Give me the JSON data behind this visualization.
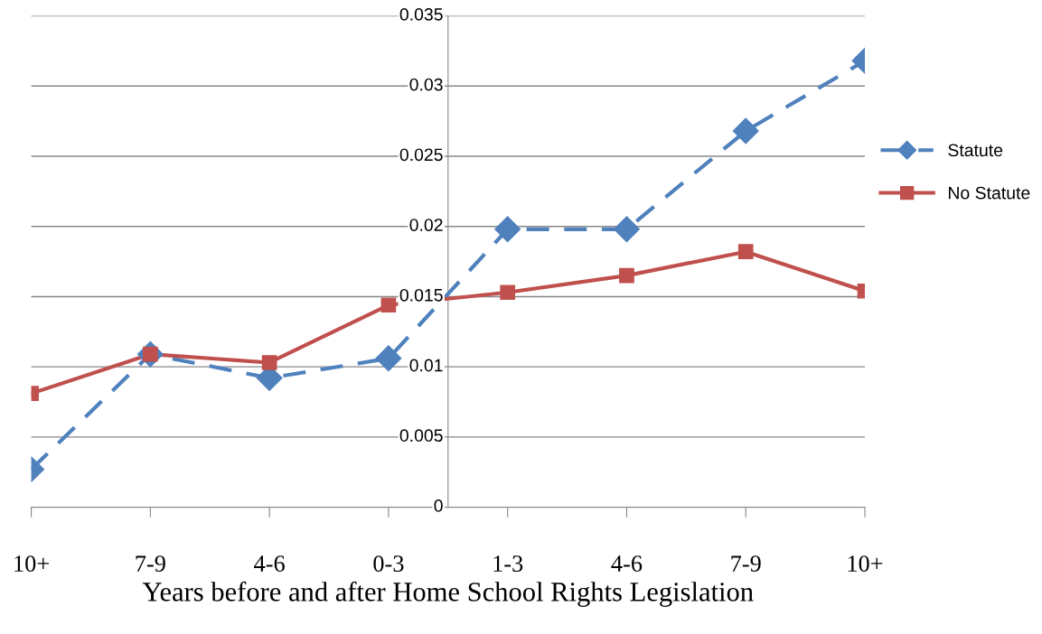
{
  "chart_data": {
    "type": "line",
    "xlabel": "Years before and after Home School Rights Legislation",
    "categories": [
      "10+",
      "7-9",
      "4-6",
      "0-3",
      "1-3",
      "4-6",
      "7-9",
      "10+"
    ],
    "series": [
      {
        "name": "Statute",
        "color": "#4f81bd",
        "marker": "diamond",
        "line_style": "dashed",
        "values": [
          0.0027,
          0.0109,
          0.0092,
          0.0106,
          0.0198,
          0.0198,
          0.0268,
          0.0318
        ]
      },
      {
        "name": "No Statute",
        "color": "#c0504d",
        "marker": "square",
        "line_style": "solid",
        "values": [
          0.0081,
          0.0109,
          0.0103,
          0.0144,
          0.0153,
          0.0165,
          0.0182,
          0.0154
        ]
      }
    ],
    "ylim": [
      0,
      0.035
    ],
    "yticks": [
      0,
      0.005,
      0.01,
      0.015,
      0.02,
      0.025,
      0.03,
      0.035
    ],
    "grid": "y",
    "legend": "right"
  }
}
